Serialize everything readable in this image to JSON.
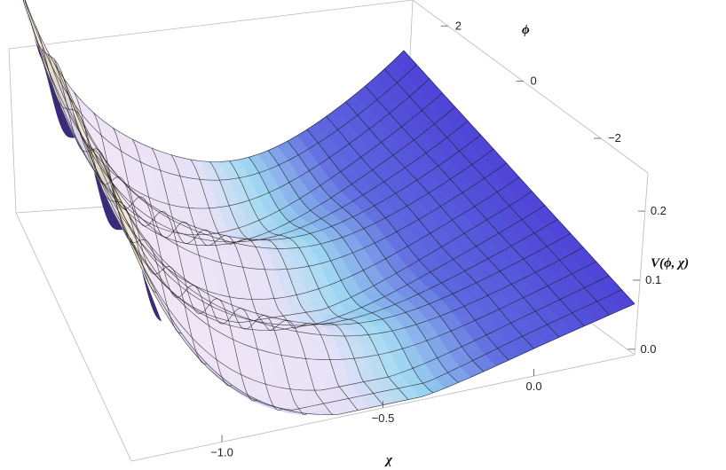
{
  "chart_data": {
    "type": "surface3d",
    "title": "",
    "xlabel": "χ",
    "ylabel": "ϕ",
    "zlabel": "V(ϕ, χ)",
    "x_ticks": [
      "−1.0",
      "−0.5",
      "0.0"
    ],
    "y_ticks": [
      "2",
      "0",
      "−2"
    ],
    "z_ticks": [
      "0.0",
      "0.1",
      "0.2"
    ],
    "x_range": [
      -1.3,
      0.3
    ],
    "y_range": [
      -3.2,
      2.4
    ],
    "z_range": [
      0.0,
      0.26
    ],
    "grid": false,
    "box": true,
    "mesh": {
      "columns": 20,
      "rows": 18
    },
    "colors": {
      "surface_high": "#4a3fd6",
      "surface_mid": "#9ed8f2",
      "surface_low": "#f0e4f5",
      "surface_edge": "#f2e6c2",
      "underside": "#3a2a7a",
      "mesh_line": "#1a1a1a",
      "box_line": "#b9b9b9"
    }
  }
}
